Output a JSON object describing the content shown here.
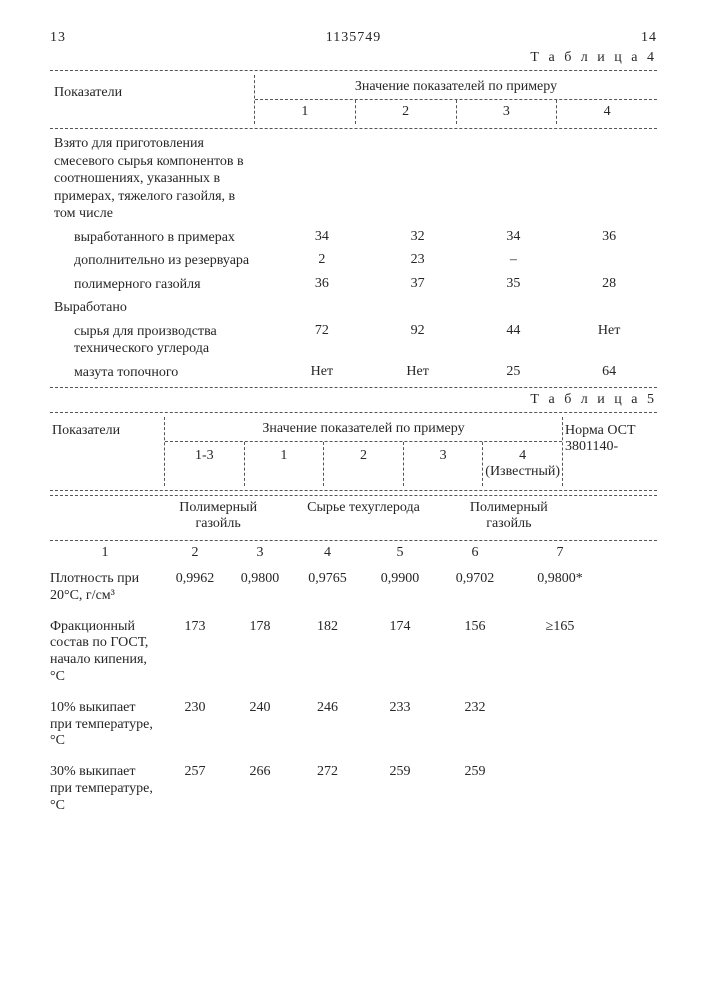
{
  "header": {
    "left_page": "13",
    "doc_number": "1135749",
    "right_page": "14"
  },
  "table4": {
    "title": "Т а б л и ц а  4",
    "indicators_label": "Показатели",
    "group_caption": "Значение показателей по примеру",
    "cols": [
      "1",
      "2",
      "3",
      "4"
    ],
    "rows": [
      {
        "label": "Взято для приготовления смесевого сырья компонентов в соотношениях, указанных в примерах, тяжелого газойля, в том числе",
        "indent": false,
        "v": [
          "",
          "",
          "",
          ""
        ]
      },
      {
        "label": "выработанного в примерах",
        "indent": true,
        "v": [
          "34",
          "32",
          "34",
          "36"
        ]
      },
      {
        "label": "дополнительно из резервуара",
        "indent": true,
        "v": [
          "2",
          "23",
          "–",
          ""
        ]
      },
      {
        "label": "полимерного газойля",
        "indent": true,
        "v": [
          "36",
          "37",
          "35",
          "28"
        ]
      },
      {
        "label": "Выработано",
        "indent": false,
        "v": [
          "",
          "",
          "",
          ""
        ]
      },
      {
        "label": "сырья для производства технического углерода",
        "indent": true,
        "v": [
          "72",
          "92",
          "44",
          "Нет"
        ]
      },
      {
        "label": "мазута топочного",
        "indent": true,
        "v": [
          "Нет",
          "Нет",
          "25",
          "64"
        ]
      }
    ]
  },
  "table5": {
    "title": "Т а б л и ц а  5",
    "indicators_label": "Показатели",
    "group_caption": "Значение показателей по примеру",
    "norm_label": "Норма ОСТ 3801140-",
    "example_cols": [
      "1-3",
      "1",
      "2",
      "3",
      "4 (Известный)"
    ],
    "group_labels": {
      "g2": "Полимерный газойль",
      "g3": "Сырье техуглерода",
      "g4": "Полимерный газойль"
    },
    "col_nums": [
      "1",
      "2",
      "3",
      "4",
      "5",
      "6",
      "7"
    ],
    "rows": [
      {
        "label": "Плотность при 20°С, г/см³",
        "v": [
          "0,9962",
          "0,9800",
          "0,9765",
          "0,9900",
          "0,9702",
          "0,9800*"
        ]
      },
      {
        "label": "Фракционный состав по ГОСТ, начало кипения, °С",
        "v": [
          "173",
          "178",
          "182",
          "174",
          "156",
          "≥165"
        ]
      },
      {
        "label": "10% выкипает при температуре, °С",
        "v": [
          "230",
          "240",
          "246",
          "233",
          "232",
          ""
        ]
      },
      {
        "label": "30% выкипает при температуре, °С",
        "v": [
          "257",
          "266",
          "272",
          "259",
          "259",
          ""
        ]
      }
    ]
  }
}
